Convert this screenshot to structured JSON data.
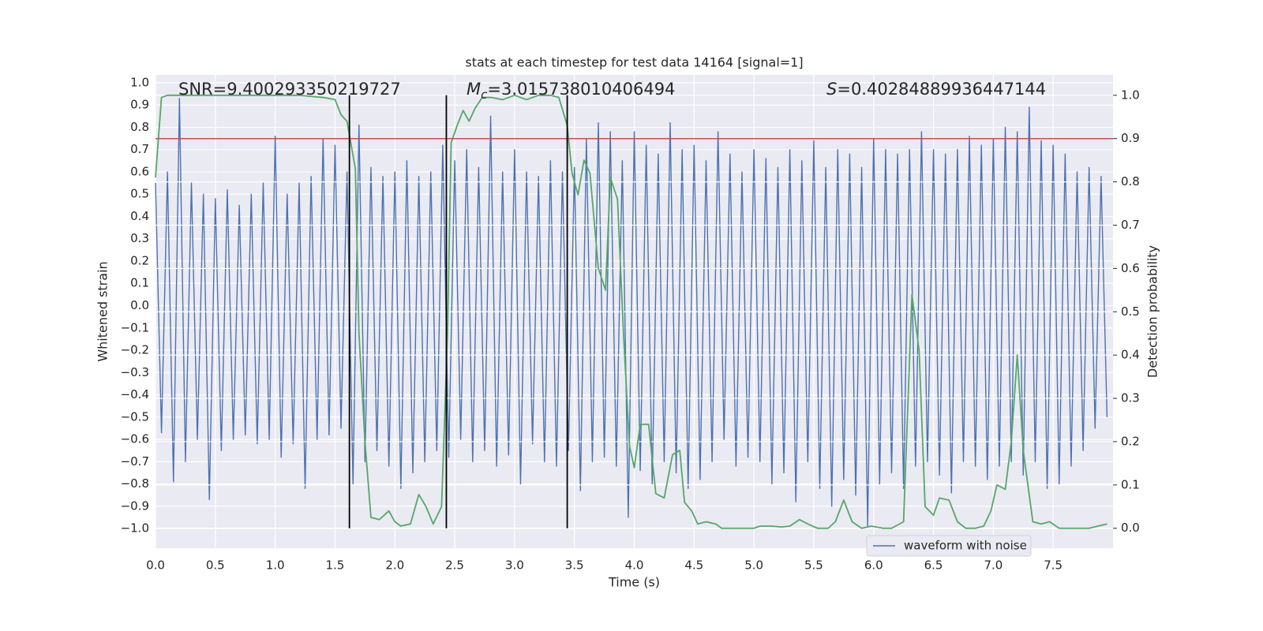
{
  "chart_data": {
    "type": "line",
    "title": "stats at each timestep for test data 14164 [signal=1]",
    "xlabel": "Time (s)",
    "ylabel": "Whitened strain",
    "y2label": "Detection probability",
    "xlim": [
      0,
      8
    ],
    "ylim": [
      -1.088,
      1.035
    ],
    "y2lim": [
      -0.046,
      1.047
    ],
    "xticks": [
      {
        "value": 0,
        "label": "0.0"
      },
      0.5,
      {
        "value": 1,
        "label": "1.0"
      },
      1.5,
      {
        "value": 2,
        "label": "2.0"
      },
      2.5,
      {
        "value": 3,
        "label": "3.0"
      },
      3.5,
      {
        "value": 4,
        "label": "4.0"
      },
      4.5,
      {
        "value": 5,
        "label": "5.0"
      },
      5.5,
      {
        "value": 6,
        "label": "6.0"
      },
      6.5,
      {
        "value": 7,
        "label": "7.0"
      },
      7.5
    ],
    "yticks": [
      {
        "value": -1,
        "label": "−1.0"
      },
      {
        "value": -0.9,
        "label": "−0.9"
      },
      {
        "value": -0.8,
        "label": "−0.8"
      },
      {
        "value": -0.7,
        "label": "−0.7"
      },
      {
        "value": -0.6,
        "label": "−0.6"
      },
      {
        "value": -0.5,
        "label": "−0.5"
      },
      {
        "value": -0.4,
        "label": "−0.4"
      },
      {
        "value": -0.3,
        "label": "−0.3"
      },
      {
        "value": -0.2,
        "label": "−0.2"
      },
      {
        "value": -0.1,
        "label": "−0.1"
      },
      {
        "value": 0,
        "label": "0.0"
      },
      0.1,
      0.2,
      0.3,
      0.4,
      0.5,
      0.6,
      0.7,
      0.8,
      0.9,
      {
        "value": 1,
        "label": "1.0"
      }
    ],
    "y2ticks": [
      {
        "value": 0,
        "label": "0.0"
      },
      0.1,
      0.2,
      0.3,
      0.4,
      0.5,
      0.6,
      0.7,
      0.8,
      0.9,
      {
        "value": 1,
        "label": "1.0"
      }
    ],
    "grid": true,
    "legend": "lower right",
    "series": [
      {
        "name": "waveform with noise",
        "color": "#4c72b0",
        "x": [
          0,
          0.05,
          0.1,
          0.15,
          0.2,
          0.25,
          0.3,
          0.35,
          0.4,
          0.45,
          0.5,
          0.55,
          0.6,
          0.65,
          0.7,
          0.75,
          0.8,
          0.85,
          0.9,
          0.95,
          1,
          1.05,
          1.1,
          1.15,
          1.2,
          1.25,
          1.3,
          1.35,
          1.4,
          1.45,
          1.5,
          1.55,
          1.6,
          1.65,
          1.7,
          1.75,
          1.8,
          1.85,
          1.9,
          1.95,
          2,
          2.05,
          2.1,
          2.15,
          2.2,
          2.25,
          2.3,
          2.35,
          2.4,
          2.45,
          2.5,
          2.55,
          2.6,
          2.65,
          2.7,
          2.75,
          2.8,
          2.85,
          2.9,
          2.95,
          3,
          3.05,
          3.1,
          3.15,
          3.2,
          3.25,
          3.3,
          3.35,
          3.4,
          3.45,
          3.5,
          3.55,
          3.6,
          3.65,
          3.7,
          3.75,
          3.8,
          3.85,
          3.9,
          3.95,
          4,
          4.05,
          4.1,
          4.15,
          4.2,
          4.25,
          4.3,
          4.35,
          4.4,
          4.45,
          4.5,
          4.55,
          4.6,
          4.65,
          4.7,
          4.75,
          4.8,
          4.85,
          4.9,
          4.95,
          5,
          5.05,
          5.1,
          5.15,
          5.2,
          5.25,
          5.3,
          5.35,
          5.4,
          5.45,
          5.5,
          5.55,
          5.6,
          5.65,
          5.7,
          5.75,
          5.8,
          5.85,
          5.9,
          5.95,
          6,
          6.05,
          6.1,
          6.15,
          6.2,
          6.25,
          6.3,
          6.35,
          6.4,
          6.45,
          6.5,
          6.55,
          6.6,
          6.65,
          6.7,
          6.75,
          6.8,
          6.85,
          6.9,
          6.95,
          7,
          7.05,
          7.1,
          7.15,
          7.2,
          7.25,
          7.3,
          7.35,
          7.4,
          7.45,
          7.5,
          7.55,
          7.6,
          7.65,
          7.7,
          7.75,
          7.8,
          7.85,
          7.9,
          7.95
        ],
        "values": [
          0.55,
          -0.57,
          0.6,
          -0.79,
          0.93,
          -0.7,
          0.55,
          -0.6,
          0.5,
          -0.87,
          0.48,
          -0.65,
          0.52,
          -0.6,
          0.45,
          -0.58,
          0.5,
          -0.62,
          0.55,
          -0.6,
          0.76,
          -0.68,
          0.5,
          -0.62,
          0.55,
          -0.82,
          0.58,
          -0.6,
          0.75,
          -0.58,
          0.72,
          -0.55,
          0.6,
          -0.8,
          0.81,
          -0.7,
          0.62,
          -0.65,
          0.58,
          -0.72,
          0.6,
          -0.82,
          0.65,
          -0.75,
          0.58,
          -0.7,
          0.6,
          -0.65,
          0.72,
          -0.68,
          0.65,
          -0.6,
          0.7,
          -0.7,
          0.62,
          -0.65,
          0.85,
          -0.72,
          0.6,
          -0.67,
          0.7,
          -0.8,
          0.6,
          -0.62,
          0.58,
          -0.7,
          0.65,
          -0.72,
          0.6,
          -0.65,
          0.62,
          -0.83,
          0.75,
          -0.7,
          0.82,
          -0.68,
          0.78,
          -0.72,
          0.65,
          -0.95,
          0.78,
          -0.74,
          0.72,
          -0.8,
          0.68,
          -0.7,
          0.82,
          -0.75,
          0.7,
          -0.82,
          0.72,
          -0.78,
          0.65,
          -0.7,
          0.78,
          -0.6,
          0.68,
          -0.72,
          0.6,
          -0.68,
          0.7,
          -0.7,
          0.66,
          -0.8,
          0.62,
          -0.75,
          0.7,
          -0.88,
          0.65,
          -0.7,
          0.74,
          -0.82,
          0.62,
          -0.9,
          0.7,
          -0.78,
          0.68,
          -0.85,
          0.62,
          -0.99,
          0.75,
          -0.8,
          0.7,
          -0.75,
          0.68,
          -0.82,
          0.7,
          -0.72,
          0.78,
          -0.7,
          0.7,
          -0.76,
          0.68,
          -0.84,
          0.7,
          -0.7,
          0.76,
          -0.72,
          0.72,
          -0.78,
          0.75,
          -0.72,
          0.8,
          -0.7,
          0.78,
          -0.76,
          0.89,
          -0.7,
          0.74,
          -0.82,
          0.72,
          -0.8,
          0.68,
          -0.72,
          0.6,
          -0.65,
          0.62,
          -0.55,
          0.58,
          -0.5
        ]
      },
      {
        "color": "#55a868",
        "axis": "y2",
        "x": [
          0,
          0.05,
          0.1,
          0.2,
          0.4,
          0.6,
          0.8,
          1,
          1.2,
          1.4,
          1.5,
          1.55,
          1.6,
          1.67,
          1.7,
          1.75,
          1.8,
          1.87,
          1.95,
          2,
          2.05,
          2.13,
          2.2,
          2.26,
          2.32,
          2.39,
          2.44,
          2.47,
          2.52,
          2.57,
          2.62,
          2.67,
          2.73,
          2.8,
          2.9,
          3,
          3.1,
          3.2,
          3.3,
          3.37,
          3.44,
          3.48,
          3.53,
          3.58,
          3.63,
          3.7,
          3.76,
          3.8,
          3.86,
          3.91,
          3.96,
          4,
          4.05,
          4.12,
          4.18,
          4.25,
          4.32,
          4.38,
          4.42,
          4.48,
          4.53,
          4.6,
          4.68,
          4.73,
          4.85,
          5,
          5.05,
          5.15,
          5.23,
          5.3,
          5.38,
          5.45,
          5.53,
          5.62,
          5.68,
          5.75,
          5.82,
          5.9,
          5.98,
          6.08,
          6.15,
          6.25,
          6.32,
          6.38,
          6.43,
          6.5,
          6.55,
          6.63,
          6.7,
          6.77,
          6.85,
          6.92,
          6.98,
          7.03,
          7.1,
          7.15,
          7.2,
          7.25,
          7.33,
          7.4,
          7.47,
          7.55,
          7.65,
          7.8,
          7.95
        ],
        "values": [
          0.81,
          0.995,
          1,
          1,
          1,
          1,
          1,
          1,
          1,
          0.995,
          0.99,
          0.955,
          0.94,
          0.83,
          0.45,
          0.2,
          0.025,
          0.02,
          0.04,
          0.015,
          0.005,
          0.01,
          0.078,
          0.05,
          0.01,
          0.05,
          0.45,
          0.89,
          0.93,
          0.965,
          0.94,
          0.97,
          0.995,
          0.995,
          0.99,
          1,
          0.99,
          1,
          1,
          0.995,
          0.93,
          0.82,
          0.77,
          0.85,
          0.82,
          0.6,
          0.55,
          0.81,
          0.76,
          0.45,
          0.19,
          0.14,
          0.24,
          0.24,
          0.08,
          0.07,
          0.17,
          0.18,
          0.06,
          0.04,
          0.01,
          0.015,
          0.01,
          0,
          0,
          0,
          0.005,
          0.005,
          0.003,
          0.005,
          0.02,
          0.01,
          0,
          0,
          0.015,
          0.065,
          0.015,
          0,
          0.005,
          0,
          0,
          0.015,
          0.54,
          0.41,
          0.05,
          0.03,
          0.07,
          0.065,
          0.015,
          0,
          0,
          0.005,
          0.04,
          0.1,
          0.09,
          0.2,
          0.4,
          0.18,
          0.015,
          0.01,
          0.015,
          0,
          0,
          0,
          0.01
        ]
      }
    ],
    "hline": {
      "y": 0.9,
      "axis": "y2",
      "color": "#c44e52"
    },
    "vlines": {
      "x": [
        1.62,
        2.43,
        3.44
      ],
      "span": [
        0,
        1
      ],
      "axis": "y2",
      "color": "#000000"
    },
    "annotations": [
      {
        "text": "SNR=9.400293350219727"
      },
      {
        "symbol": "M",
        "sub": "c",
        "text": "=3.015738010406494"
      },
      {
        "symbol": "S",
        "text": "=0.40284889936447144"
      }
    ]
  }
}
